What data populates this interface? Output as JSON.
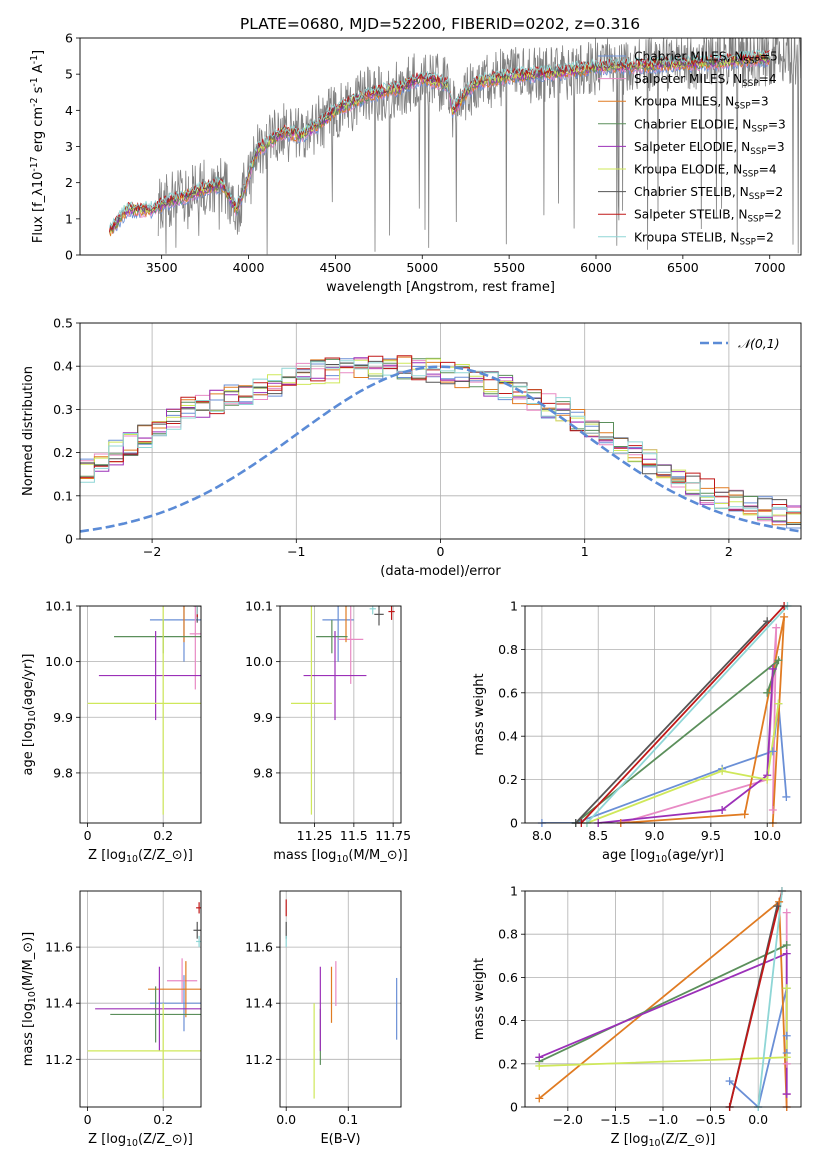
{
  "figure": {
    "title": "PLATE=0680, MJD=52200, FIBERID=0202, z=0.316",
    "colors": {
      "Chabrier MILES": "#6a8fd6",
      "Salpeter MILES": "#e88ac4",
      "Kroupa MILES": "#e07b22",
      "Chabrier ELODIE": "#5b8f5b",
      "Salpeter ELODIE": "#9b30b8",
      "Kroupa ELODIE": "#cfe85a",
      "Chabrier STELIB": "#555555",
      "Salpeter STELIB": "#c01818",
      "Kroupa STELIB": "#8fd6d6",
      "data": "#808080",
      "normal": "#5b8bd6"
    }
  },
  "chart_data": [
    {
      "id": "spectrum",
      "type": "line",
      "xlabel": "wavelength [Angstrom, rest frame]",
      "ylabel": "Flux [f$_\\lambda$10$^{-17}$ erg cm$^{-2}$ s$^{-1}$ A$^{-1}$]",
      "xlim": [
        3030,
        7180
      ],
      "ylim": [
        0,
        6
      ],
      "xticks": [
        3500,
        4000,
        4500,
        5000,
        5500,
        6000,
        6500,
        7000
      ],
      "yticks": [
        0,
        1,
        2,
        3,
        4,
        5,
        6
      ],
      "grid": false,
      "legend_position": "upper-right",
      "continuum_nodes": {
        "x": [
          3200,
          3300,
          3450,
          3550,
          3650,
          3750,
          3850,
          3930,
          3960,
          4050,
          4200,
          4300,
          4400,
          4500,
          4700,
          4860,
          5000,
          5150,
          5175,
          5300,
          5500,
          5800,
          6000,
          6300,
          6600,
          7000
        ],
        "y": [
          0.65,
          1.25,
          1.25,
          1.5,
          1.65,
          1.85,
          1.95,
          1.25,
          1.6,
          2.9,
          3.4,
          3.3,
          3.6,
          4.0,
          4.45,
          4.6,
          4.9,
          4.7,
          4.0,
          4.75,
          4.95,
          5.05,
          5.2,
          5.25,
          5.3,
          5.45
        ]
      },
      "data_range": [
        3480,
        7180
      ],
      "models_range": [
        3200,
        7000
      ],
      "legend": [
        {
          "label": "Chabrier MILES, N$_{SSP}$=5",
          "color_key": "Chabrier MILES",
          "n_ssp": 5
        },
        {
          "label": "Salpeter MILES, N$_{SSP}$=4",
          "color_key": "Salpeter MILES",
          "n_ssp": 4
        },
        {
          "label": "Kroupa MILES, N$_{SSP}$=3",
          "color_key": "Kroupa MILES",
          "n_ssp": 3
        },
        {
          "label": "Chabrier ELODIE, N$_{SSP}$=3",
          "color_key": "Chabrier ELODIE",
          "n_ssp": 3
        },
        {
          "label": "Salpeter ELODIE, N$_{SSP}$=3",
          "color_key": "Salpeter ELODIE",
          "n_ssp": 3
        },
        {
          "label": "Kroupa ELODIE, N$_{SSP}$=4",
          "color_key": "Kroupa ELODIE",
          "n_ssp": 4
        },
        {
          "label": "Chabrier STELIB, N$_{SSP}$=2",
          "color_key": "Chabrier STELIB",
          "n_ssp": 2
        },
        {
          "label": "Salpeter STELIB, N$_{SSP}$=2",
          "color_key": "Salpeter STELIB",
          "n_ssp": 2
        },
        {
          "label": "Kroupa STELIB, N$_{SSP}$=2",
          "color_key": "Kroupa STELIB",
          "n_ssp": 2
        }
      ]
    },
    {
      "id": "residuals",
      "type": "line",
      "xlabel": "(data-model)/error",
      "ylabel": "Normed distribution",
      "xlim": [
        -2.5,
        2.5
      ],
      "ylim": [
        0,
        0.5
      ],
      "xticks": [
        -2,
        -1,
        0,
        1,
        2
      ],
      "yticks": [
        0.0,
        0.1,
        0.2,
        0.3,
        0.4,
        0.5
      ],
      "grid": true,
      "legend_position": "upper-right",
      "legend_label": "$\\mathcal{N}(0,1)$",
      "bin_width": 0.1,
      "hist_profile": [
        0.025,
        0.028,
        0.032,
        0.036,
        0.045,
        0.05,
        0.06,
        0.07,
        0.08,
        0.09,
        0.11,
        0.125,
        0.14,
        0.16,
        0.18,
        0.2,
        0.22,
        0.24,
        0.26,
        0.28,
        0.3,
        0.31,
        0.32,
        0.33,
        0.34,
        0.35,
        0.36,
        0.37,
        0.38,
        0.385,
        0.39,
        0.395,
        0.4,
        0.4,
        0.4,
        0.4,
        0.395,
        0.39,
        0.385,
        0.38,
        0.37,
        0.36,
        0.35,
        0.34,
        0.325,
        0.31,
        0.3,
        0.28,
        0.26,
        0.24,
        0.22,
        0.2,
        0.18,
        0.16,
        0.14,
        0.125,
        0.11,
        0.1,
        0.09,
        0.08,
        0.07,
        0.062,
        0.055,
        0.048,
        0.042,
        0.037,
        0.033,
        0.03,
        0.028,
        0.026,
        0.024,
        0.023,
        0.022,
        0.021,
        0.02
      ],
      "hist_range": [
        -3.8,
        3.7
      ],
      "series_order": [
        "Chabrier MILES",
        "Salpeter MILES",
        "Kroupa MILES",
        "Chabrier ELODIE",
        "Salpeter ELODIE",
        "Kroupa ELODIE",
        "Chabrier STELIB",
        "Salpeter STELIB",
        "Kroupa STELIB"
      ]
    },
    {
      "id": "age_Z",
      "type": "scatter",
      "xlabel": "Z [log$_{10}$($Z/Z_\\odot$)]",
      "ylabel": "age  [log$_{10}$($age/yr$)]",
      "xlim": [
        -0.02,
        0.3
      ],
      "ylim": [
        9.71,
        10.1
      ],
      "xticks": [
        0.0,
        0.2
      ],
      "yticks": [
        9.8,
        9.9,
        10.0,
        10.1
      ],
      "ytick_labels": [
        "9.8",
        "9.9",
        "10.0",
        "10.1"
      ],
      "grid": true,
      "points": [
        {
          "model": "Chabrier MILES",
          "x": 0.255,
          "xerr": 0.09,
          "y": 10.075,
          "yerr": 0.075
        },
        {
          "model": "Salpeter MILES",
          "x": 0.285,
          "xerr": 0.015,
          "y": 10.05,
          "yerr": 0.1
        },
        {
          "model": "Kroupa MILES",
          "x": 0.255,
          "xerr": 0.1,
          "y": 10.135,
          "yerr": 0.1
        },
        {
          "model": "Chabrier ELODIE",
          "x": 0.2,
          "xerr": 0.13,
          "y": 10.045,
          "yerr": 0.03
        },
        {
          "model": "Salpeter ELODIE",
          "x": 0.18,
          "xerr": 0.15,
          "y": 9.975,
          "yerr": 0.08
        },
        {
          "model": "Kroupa ELODIE",
          "x": 0.2,
          "xerr": 0.2,
          "y": 9.925,
          "yerr": 0.2
        },
        {
          "model": "Chabrier STELIB",
          "x": 0.29,
          "xerr": 0.01,
          "y": 10.1,
          "yerr": 0.03
        },
        {
          "model": "Salpeter STELIB",
          "x": 0.29,
          "xerr": 0.01,
          "y": 10.1,
          "yerr": 0.02
        },
        {
          "model": "Kroupa STELIB",
          "x": 0.29,
          "xerr": 0.01,
          "y": 10.1,
          "yerr": 0.015
        }
      ]
    },
    {
      "id": "age_mass",
      "type": "scatter",
      "xlabel": "mass [log$_{10}$($M/M_\\odot$)]",
      "ylabel": "",
      "xlim": [
        11.03,
        11.8
      ],
      "ylim": [
        9.71,
        10.1
      ],
      "xticks": [
        11.25,
        11.5,
        11.75
      ],
      "yticks": [
        9.8,
        9.9,
        10.0,
        10.1
      ],
      "ytick_labels": [
        "9.8",
        "9.9",
        "10.0",
        "10.1"
      ],
      "grid": true,
      "points": [
        {
          "model": "Chabrier MILES",
          "x": 11.4,
          "xerr": 0.1,
          "y": 10.075,
          "yerr": 0.075
        },
        {
          "model": "Salpeter MILES",
          "x": 11.48,
          "xerr": 0.08,
          "y": 10.04,
          "yerr": 0.08
        },
        {
          "model": "Kroupa MILES",
          "x": 11.45,
          "xerr": 0.1,
          "y": 10.135,
          "yerr": 0.1
        },
        {
          "model": "Chabrier ELODIE",
          "x": 11.36,
          "xerr": 0.1,
          "y": 10.045,
          "yerr": 0.03
        },
        {
          "model": "Salpeter ELODIE",
          "x": 11.38,
          "xerr": 0.2,
          "y": 9.975,
          "yerr": 0.08
        },
        {
          "model": "Kroupa ELODIE",
          "x": 11.23,
          "xerr": 0.13,
          "y": 9.925,
          "yerr": 0.2
        },
        {
          "model": "Chabrier STELIB",
          "x": 11.66,
          "xerr": 0.03,
          "y": 10.085,
          "yerr": 0.02
        },
        {
          "model": "Salpeter STELIB",
          "x": 11.74,
          "xerr": 0.02,
          "y": 10.09,
          "yerr": 0.015
        },
        {
          "model": "Kroupa STELIB",
          "x": 11.62,
          "xerr": 0.02,
          "y": 10.095,
          "yerr": 0.01
        }
      ]
    },
    {
      "id": "mw_age",
      "type": "line",
      "xlabel": "age  [log$_{10}$($age/yr$)]",
      "ylabel": "mass weight",
      "xlim": [
        7.85,
        10.3
      ],
      "ylim": [
        0,
        1
      ],
      "xticks": [
        8.0,
        8.5,
        9.0,
        9.5,
        10.0
      ],
      "xtick_labels": [
        "8.0",
        "8.5",
        "9.0",
        "9.5",
        "10.0"
      ],
      "yticks": [
        0.0,
        0.2,
        0.4,
        0.6,
        0.8,
        1.0
      ],
      "grid": true,
      "series": [
        {
          "model": "Chabrier MILES",
          "x": [
            8.0,
            8.3,
            9.6,
            10.05,
            10.1,
            10.17
          ],
          "y": [
            0.0,
            0.0,
            0.25,
            0.33,
            0.55,
            0.12
          ]
        },
        {
          "model": "Salpeter MILES",
          "x": [
            8.7,
            10.0,
            10.08,
            10.05
          ],
          "y": [
            0.0,
            0.2,
            0.9,
            0.06
          ]
        },
        {
          "model": "Kroupa MILES",
          "x": [
            8.7,
            9.8,
            10.15,
            10.05
          ],
          "y": [
            0.0,
            0.04,
            0.95,
            0.0
          ]
        },
        {
          "model": "Chabrier ELODIE",
          "x": [
            8.3,
            10.1,
            10.0
          ],
          "y": [
            0.0,
            0.75,
            0.6
          ]
        },
        {
          "model": "Salpeter ELODIE",
          "x": [
            8.5,
            9.6,
            10.0,
            10.05
          ],
          "y": [
            0.0,
            0.06,
            0.22,
            0.71
          ]
        },
        {
          "model": "Kroupa ELODIE",
          "x": [
            8.4,
            9.6,
            10.0,
            10.1
          ],
          "y": [
            0.0,
            0.24,
            0.2,
            0.55
          ]
        },
        {
          "model": "Chabrier STELIB",
          "x": [
            8.3,
            10.0
          ],
          "y": [
            0.0,
            0.93
          ]
        },
        {
          "model": "Salpeter STELIB",
          "x": [
            8.35,
            10.15
          ],
          "y": [
            0.0,
            1.0
          ]
        },
        {
          "model": "Kroupa STELIB",
          "x": [
            8.4,
            10.18
          ],
          "y": [
            0.0,
            1.0
          ]
        }
      ]
    },
    {
      "id": "mass_Z",
      "type": "scatter",
      "xlabel": "Z [log$_{10}$($Z/Z_\\odot$)]",
      "ylabel": "mass [log$_{10}$($M/M_\\odot$)]",
      "xlim": [
        -0.02,
        0.3
      ],
      "ylim": [
        11.03,
        11.8
      ],
      "xticks": [
        0.0,
        0.2
      ],
      "yticks": [
        11.2,
        11.4,
        11.6
      ],
      "grid": true,
      "points": [
        {
          "model": "Chabrier MILES",
          "x": 0.255,
          "xerr": 0.09,
          "y": 11.4,
          "yerr": 0.1
        },
        {
          "model": "Salpeter MILES",
          "x": 0.25,
          "xerr": 0.04,
          "y": 11.48,
          "yerr": 0.08
        },
        {
          "model": "Kroupa MILES",
          "x": 0.26,
          "xerr": 0.1,
          "y": 11.45,
          "yerr": 0.1
        },
        {
          "model": "Chabrier ELODIE",
          "x": 0.18,
          "xerr": 0.12,
          "y": 11.36,
          "yerr": 0.1
        },
        {
          "model": "Salpeter ELODIE",
          "x": 0.19,
          "xerr": 0.17,
          "y": 11.38,
          "yerr": 0.15
        },
        {
          "model": "Kroupa ELODIE",
          "x": 0.2,
          "xerr": 0.2,
          "y": 11.23,
          "yerr": 0.17
        },
        {
          "model": "Chabrier STELIB",
          "x": 0.29,
          "xerr": 0.01,
          "y": 11.66,
          "yerr": 0.03
        },
        {
          "model": "Salpeter STELIB",
          "x": 0.295,
          "xerr": 0.008,
          "y": 11.74,
          "yerr": 0.02
        },
        {
          "model": "Kroupa STELIB",
          "x": 0.295,
          "xerr": 0.008,
          "y": 11.62,
          "yerr": 0.02
        }
      ]
    },
    {
      "id": "mass_EBV",
      "type": "scatter",
      "xlabel": "E(B-V)",
      "ylabel": "",
      "xlim": [
        -0.01,
        0.185
      ],
      "ylim": [
        11.03,
        11.8
      ],
      "xticks": [
        0.0,
        0.1
      ],
      "xtick_labels": [
        "0.0",
        "0.1"
      ],
      "yticks": [
        11.2,
        11.4,
        11.6
      ],
      "grid": true,
      "points": [
        {
          "model": "Chabrier MILES",
          "x": 0.178,
          "xerr": 0,
          "y": 11.38,
          "yerr": 0.11
        },
        {
          "model": "Salpeter MILES",
          "x": 0.08,
          "xerr": 0,
          "y": 11.47,
          "yerr": 0.08
        },
        {
          "model": "Kroupa MILES",
          "x": 0.073,
          "xerr": 0,
          "y": 11.43,
          "yerr": 0.1
        },
        {
          "model": "Chabrier ELODIE",
          "x": 0.055,
          "xerr": 0,
          "y": 11.28,
          "yerr": 0.1
        },
        {
          "model": "Salpeter ELODIE",
          "x": 0.055,
          "xerr": 0,
          "y": 11.38,
          "yerr": 0.15
        },
        {
          "model": "Kroupa ELODIE",
          "x": 0.045,
          "xerr": 0,
          "y": 11.23,
          "yerr": 0.17
        },
        {
          "model": "Chabrier STELIB",
          "x": 0.0,
          "xerr": 0,
          "y": 11.66,
          "yerr": 0.03
        },
        {
          "model": "Salpeter STELIB",
          "x": 0.0,
          "xerr": 0,
          "y": 11.74,
          "yerr": 0.03
        },
        {
          "model": "Kroupa STELIB",
          "x": 0.0,
          "xerr": 0,
          "y": 11.62,
          "yerr": 0.02
        }
      ]
    },
    {
      "id": "mw_Z",
      "type": "line",
      "xlabel": "Z [log$_{10}$($Z/Z_\\odot$)]",
      "ylabel": "mass weight",
      "xlim": [
        -2.45,
        0.45
      ],
      "ylim": [
        0,
        1
      ],
      "xticks": [
        -2.0,
        -1.5,
        -1.0,
        -0.5,
        0.0
      ],
      "xtick_labels": [
        "−2.0",
        "−1.5",
        "−1.0",
        "−0.5",
        "0.0"
      ],
      "yticks": [
        0.0,
        0.2,
        0.4,
        0.6,
        0.8,
        1.0
      ],
      "grid": true,
      "series": [
        {
          "model": "Chabrier MILES",
          "x": [
            -0.3,
            0.0,
            0.3,
            0.3,
            0.3
          ],
          "y": [
            0.12,
            0.0,
            0.55,
            0.25,
            0.33
          ]
        },
        {
          "model": "Salpeter MILES",
          "x": [
            0.3,
            0.3,
            0.3,
            0.3
          ],
          "y": [
            0.9,
            0.2,
            0.06,
            0.0
          ]
        },
        {
          "model": "Kroupa MILES",
          "x": [
            -2.3,
            0.22,
            0.3
          ],
          "y": [
            0.04,
            0.95,
            0.0
          ]
        },
        {
          "model": "Chabrier ELODIE",
          "x": [
            -2.3,
            0.3
          ],
          "y": [
            0.21,
            0.75
          ]
        },
        {
          "model": "Salpeter ELODIE",
          "x": [
            -2.3,
            0.3,
            0.3
          ],
          "y": [
            0.23,
            0.71,
            0.06
          ]
        },
        {
          "model": "Kroupa ELODIE",
          "x": [
            -2.3,
            0.3,
            0.3
          ],
          "y": [
            0.19,
            0.23,
            0.55
          ]
        },
        {
          "model": "Chabrier STELIB",
          "x": [
            -0.3,
            0.2
          ],
          "y": [
            0.0,
            0.93
          ]
        },
        {
          "model": "Salpeter STELIB",
          "x": [
            -0.3,
            0.25
          ],
          "y": [
            0.0,
            1.0
          ]
        },
        {
          "model": "Kroupa STELIB",
          "x": [
            0.0,
            0.25
          ],
          "y": [
            0.0,
            1.0
          ]
        }
      ]
    }
  ]
}
